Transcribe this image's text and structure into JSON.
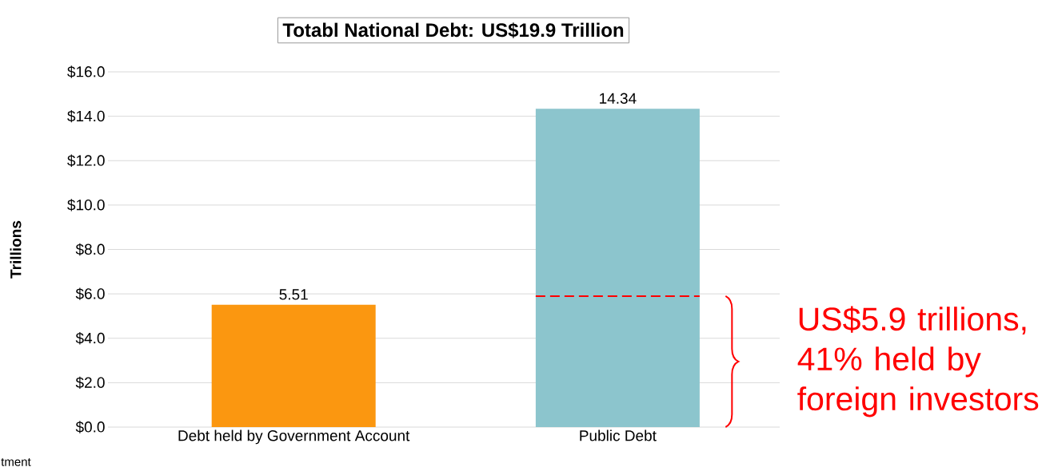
{
  "chart_data": {
    "type": "bar",
    "title": "Totabl National Debt: US$19.9 Trillion",
    "ylabel": "Trillions",
    "categories": [
      "Debt held by Government Account",
      "Public Debt"
    ],
    "values": [
      5.51,
      14.34
    ],
    "colors": [
      "#fb9710",
      "#8cc5cd"
    ],
    "ylim": [
      0,
      16
    ],
    "yticks": [
      {
        "value": 0,
        "label": "$0.0"
      },
      {
        "value": 2,
        "label": "$2.0"
      },
      {
        "value": 4,
        "label": "$4.0"
      },
      {
        "value": 6,
        "label": "$6.0"
      },
      {
        "value": 8,
        "label": "$8.0"
      },
      {
        "value": 10,
        "label": "$10.0"
      },
      {
        "value": 12,
        "label": "$12.0"
      },
      {
        "value": 14,
        "label": "$14.0"
      },
      {
        "value": 16,
        "label": "$16.0"
      }
    ],
    "grid": "y",
    "data_labels": true,
    "ref_lines": [
      {
        "axis": "y",
        "value": 5.9,
        "label": "US$5.9 trillions, 41% held by foreign investors",
        "color": "#ff0000",
        "line_style": "dashed"
      }
    ],
    "annotations": [
      "tment"
    ]
  }
}
